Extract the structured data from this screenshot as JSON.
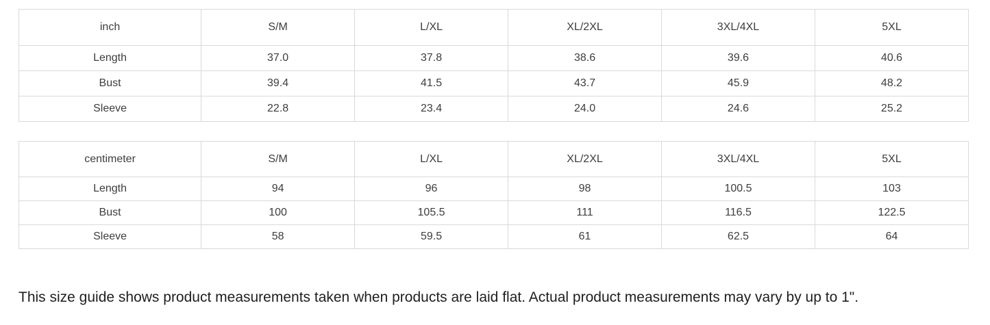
{
  "colors": {
    "background": "#ffffff",
    "table_border": "#d9d9d9",
    "table_text": "#3d3d3d",
    "note_text": "#1e1e1e"
  },
  "tables": [
    {
      "unit_label": "inch",
      "size_headers": [
        "S/M",
        "L/XL",
        "XL/2XL",
        "3XL/4XL",
        "5XL"
      ],
      "rows": [
        {
          "label": "Length",
          "values": [
            "37.0",
            "37.8",
            "38.6",
            "39.6",
            "40.6"
          ]
        },
        {
          "label": "Bust",
          "values": [
            "39.4",
            "41.5",
            "43.7",
            "45.9",
            "48.2"
          ]
        },
        {
          "label": "Sleeve",
          "values": [
            "22.8",
            "23.4",
            "24.0",
            "24.6",
            "25.2"
          ]
        }
      ]
    },
    {
      "unit_label": "centimeter",
      "size_headers": [
        "S/M",
        "L/XL",
        "XL/2XL",
        "3XL/4XL",
        "5XL"
      ],
      "rows": [
        {
          "label": "Length",
          "values": [
            "94",
            "96",
            "98",
            "100.5",
            "103"
          ]
        },
        {
          "label": "Bust",
          "values": [
            "100",
            "105.5",
            "111",
            "116.5",
            "122.5"
          ]
        },
        {
          "label": "Sleeve",
          "values": [
            "58",
            "59.5",
            "61",
            "62.5",
            "64"
          ]
        }
      ]
    }
  ],
  "footer": {
    "note": "This size guide shows product measurements taken when products are laid flat. Actual product measurements may vary by up to 1\"."
  }
}
